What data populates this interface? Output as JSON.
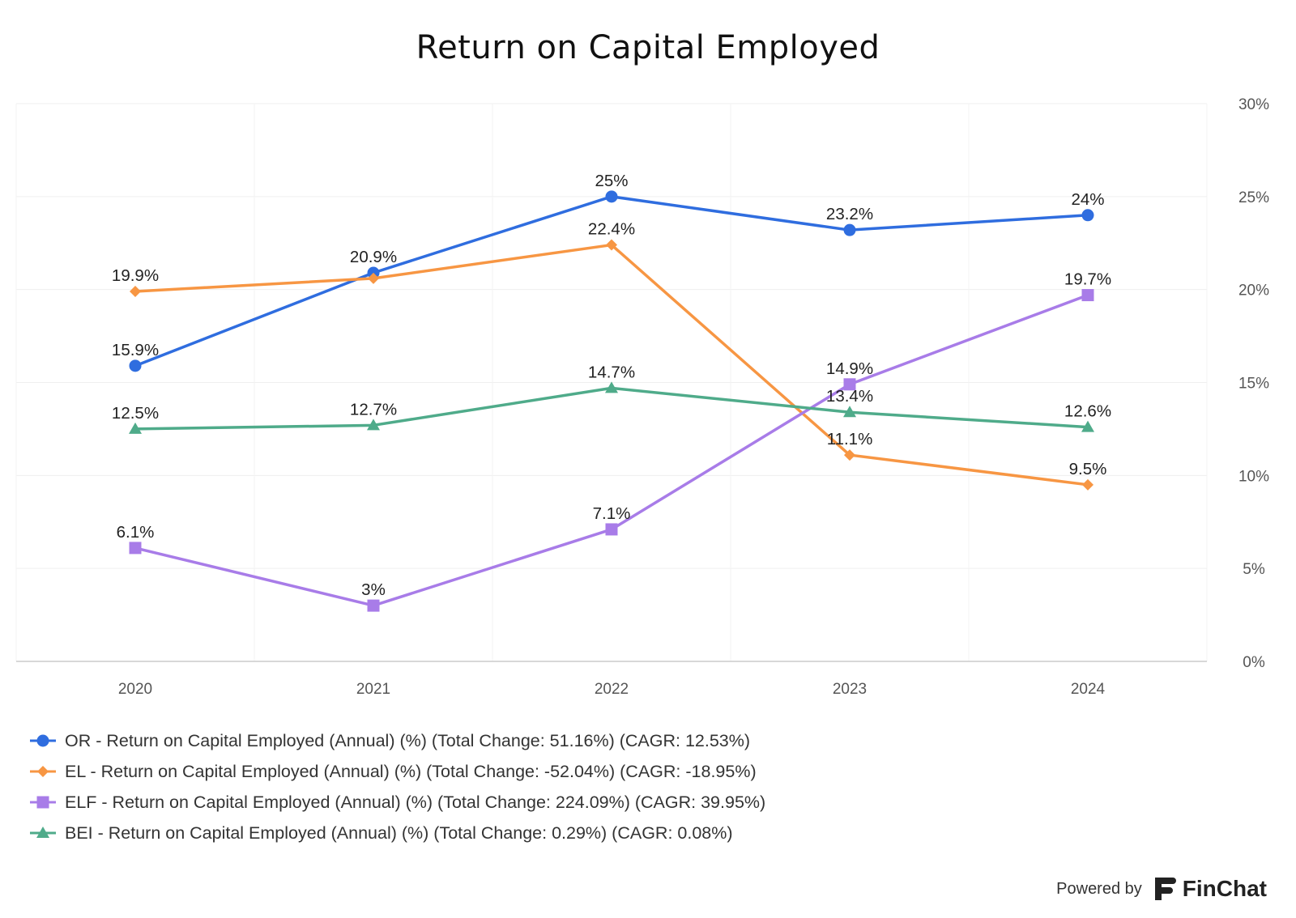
{
  "chart_data": {
    "type": "line",
    "title": "Return on Capital Employed",
    "categories": [
      "2020",
      "2021",
      "2022",
      "2023",
      "2024"
    ],
    "y_ticks": [
      "0%",
      "5%",
      "10%",
      "15%",
      "20%",
      "25%",
      "30%"
    ],
    "ylim": [
      0,
      30
    ],
    "y_axis_side": "right",
    "grid": true,
    "legend_position": "bottom-left",
    "series": [
      {
        "legend": "OR - Return on Capital Employed (Annual) (%) (Total Change: 51.16%) (CAGR: 12.53%)",
        "values": [
          15.9,
          20.9,
          25.0,
          23.2,
          24.0
        ],
        "labels": [
          "15.9%",
          "20.9%",
          "25%",
          "23.2%",
          "24%"
        ],
        "color": "#2f6ddf",
        "marker": "circle"
      },
      {
        "legend": "EL - Return on Capital Employed (Annual) (%) (Total Change: -52.04%) (CAGR: -18.95%)",
        "values": [
          19.9,
          20.6,
          22.4,
          11.1,
          9.5
        ],
        "labels": [
          "19.9%",
          "",
          "22.4%",
          "11.1%",
          "9.5%"
        ],
        "color": "#f79643",
        "marker": "diamond"
      },
      {
        "legend": "ELF - Return on Capital Employed (Annual) (%) (Total Change: 224.09%) (CAGR: 39.95%)",
        "values": [
          6.1,
          3.0,
          7.1,
          14.9,
          19.7
        ],
        "labels": [
          "6.1%",
          "3%",
          "7.1%",
          "14.9%",
          "19.7%"
        ],
        "color": "#a87ce8",
        "marker": "square"
      },
      {
        "legend": "BEI - Return on Capital Employed (Annual) (%) (Total Change: 0.29%) (CAGR: 0.08%)",
        "values": [
          12.5,
          12.7,
          14.7,
          13.4,
          12.6
        ],
        "labels": [
          "12.5%",
          "12.7%",
          "14.7%",
          "13.4%",
          "12.6%"
        ],
        "color": "#4fab8a",
        "marker": "triangle"
      }
    ]
  },
  "footer": {
    "powered_by": "Powered by",
    "brand": "FinChat",
    "logo_icon": "finchat-logo-icon"
  }
}
